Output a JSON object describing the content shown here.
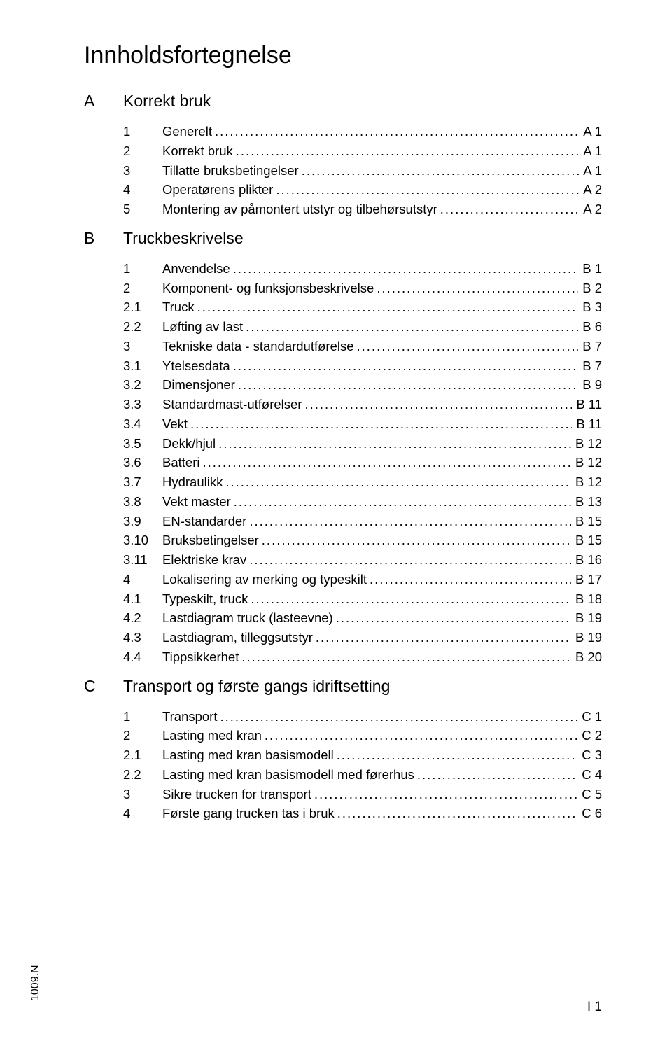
{
  "title": "Innholdsfortegnelse",
  "footer_code": "1009.N",
  "page_number": "I 1",
  "text_color": "#000000",
  "background_color": "#ffffff",
  "title_fontsize": 34,
  "heading_fontsize": 23,
  "row_fontsize": 18.5,
  "sections": [
    {
      "letter": "A",
      "heading": "Korrekt bruk",
      "entries": [
        {
          "num": "1",
          "label": "Generelt",
          "page": "A 1"
        },
        {
          "num": "2",
          "label": "Korrekt bruk",
          "page": "A 1"
        },
        {
          "num": "3",
          "label": "Tillatte bruksbetingelser",
          "page": "A 1"
        },
        {
          "num": "4",
          "label": "Operatørens plikter",
          "page": "A 2"
        },
        {
          "num": "5",
          "label": "Montering av påmontert utstyr og tilbehørsutstyr",
          "page": "A 2"
        }
      ]
    },
    {
      "letter": "B",
      "heading": "Truckbeskrivelse",
      "entries": [
        {
          "num": "1",
          "label": "Anvendelse",
          "page": "B 1"
        },
        {
          "num": "2",
          "label": "Komponent- og funksjonsbeskrivelse",
          "page": "B 2"
        },
        {
          "num": "2.1",
          "label": "Truck",
          "page": "B 3"
        },
        {
          "num": "2.2",
          "label": "Løfting av last",
          "page": "B 6"
        },
        {
          "num": "3",
          "label": "Tekniske data - standardutførelse",
          "page": "B 7"
        },
        {
          "num": "3.1",
          "label": "Ytelsesdata",
          "page": "B 7"
        },
        {
          "num": "3.2",
          "label": "Dimensjoner",
          "page": "B 9"
        },
        {
          "num": "3.3",
          "label": "Standardmast-utførelser",
          "page": "B 11"
        },
        {
          "num": "3.4",
          "label": "Vekt",
          "page": "B 11"
        },
        {
          "num": "3.5",
          "label": "Dekk/hjul",
          "page": "B 12"
        },
        {
          "num": "3.6",
          "label": "Batteri",
          "page": "B 12"
        },
        {
          "num": "3.7",
          "label": "Hydraulikk",
          "page": "B 12"
        },
        {
          "num": "3.8",
          "label": "Vekt master",
          "page": "B 13"
        },
        {
          "num": "3.9",
          "label": "EN-standarder",
          "page": "B 15"
        },
        {
          "num": "3.10",
          "label": "Bruksbetingelser",
          "page": "B 15"
        },
        {
          "num": "3.11",
          "label": "Elektriske krav",
          "page": "B 16"
        },
        {
          "num": "4",
          "label": "Lokalisering av merking og typeskilt",
          "page": "B 17"
        },
        {
          "num": "4.1",
          "label": "Typeskilt, truck",
          "page": "B 18"
        },
        {
          "num": "4.2",
          "label": "Lastdiagram truck (lasteevne)",
          "page": "B 19"
        },
        {
          "num": "4.3",
          "label": "Lastdiagram, tilleggsutstyr",
          "page": "B 19"
        },
        {
          "num": "4.4",
          "label": "Tippsikkerhet",
          "page": "B 20"
        }
      ]
    },
    {
      "letter": "C",
      "heading": "Transport og første gangs idriftsetting",
      "entries": [
        {
          "num": "1",
          "label": "Transport",
          "page": "C 1"
        },
        {
          "num": "2",
          "label": "Lasting med kran",
          "page": "C 2"
        },
        {
          "num": "2.1",
          "label": "Lasting med kran basismodell",
          "page": "C 3"
        },
        {
          "num": "2.2",
          "label": "Lasting med kran basismodell med førerhus",
          "page": "C 4"
        },
        {
          "num": "3",
          "label": "Sikre trucken for transport",
          "page": "C 5"
        },
        {
          "num": "4",
          "label": "Første gang trucken tas i bruk",
          "page": "C 6"
        }
      ]
    }
  ]
}
